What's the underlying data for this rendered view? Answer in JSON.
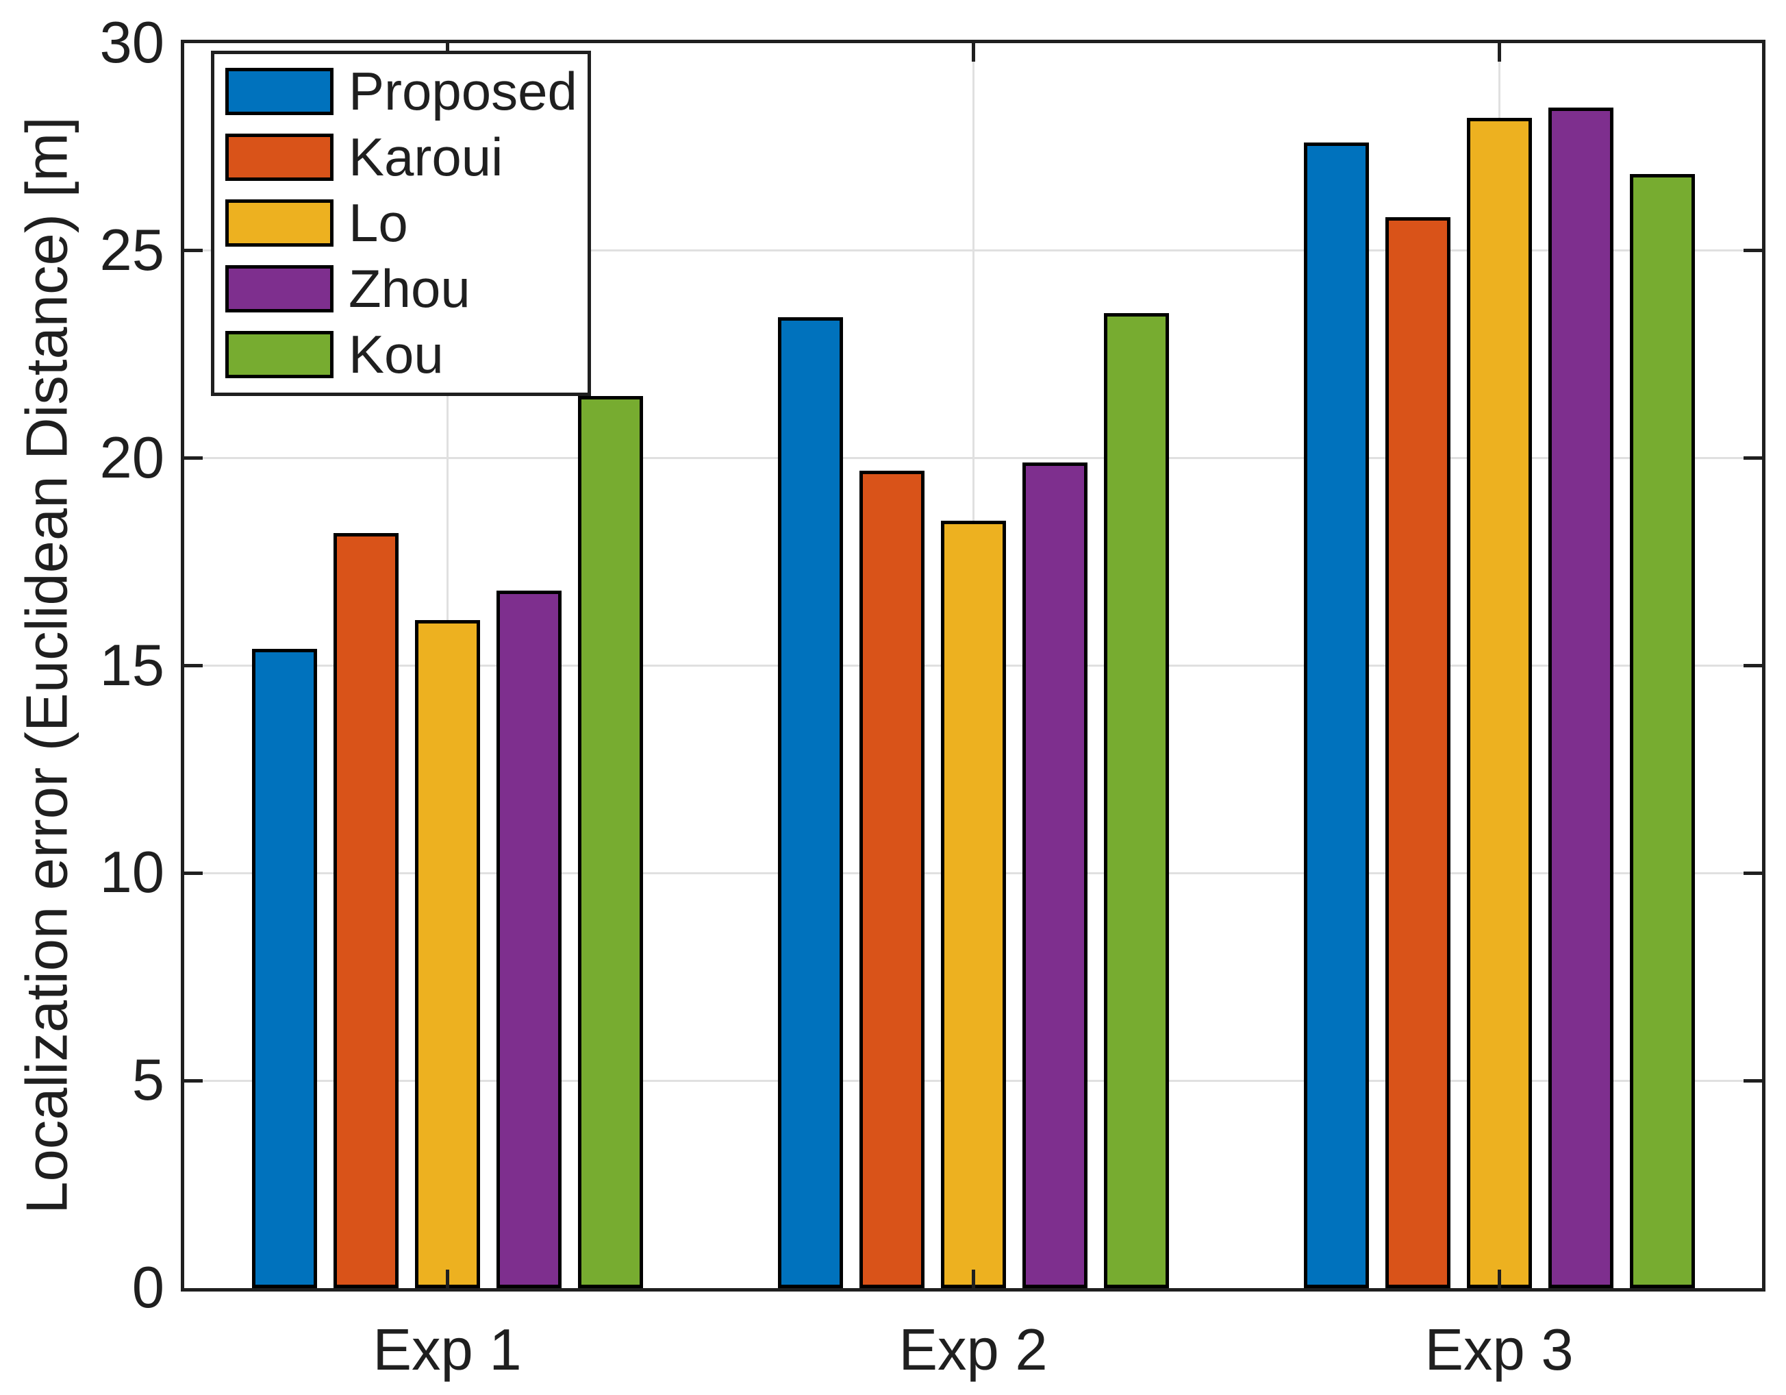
{
  "figure": {
    "background": "#ffffff",
    "axis_color": "#1f1f1f",
    "grid_color": "#e0e0e0",
    "bar_edge_color": "#000000",
    "text_color": "#1f1f1f"
  },
  "chart_data": {
    "type": "bar",
    "title": "",
    "categories": [
      "Exp 1",
      "Exp 2",
      "Exp 3"
    ],
    "series": [
      {
        "name": "Proposed",
        "color": "#0072BD",
        "values": [
          15.4,
          23.4,
          27.6
        ]
      },
      {
        "name": "Karoui",
        "color": "#D95319",
        "values": [
          18.2,
          19.7,
          25.8
        ]
      },
      {
        "name": "Lo",
        "color": "#EDB120",
        "values": [
          16.1,
          18.5,
          28.2
        ]
      },
      {
        "name": "Zhou",
        "color": "#7E2F8E",
        "values": [
          16.8,
          19.9,
          28.45
        ]
      },
      {
        "name": "Kou",
        "color": "#77AC30",
        "values": [
          21.5,
          23.5,
          26.85
        ]
      }
    ],
    "xlabel": "",
    "ylabel": "Localization error (Euclidean Distance) [m]",
    "ylim": [
      0,
      30
    ],
    "yticks": [
      0,
      5,
      10,
      15,
      20,
      25,
      30
    ],
    "grid": true,
    "legend_position": "top-left-inside",
    "legend_entries": [
      "Proposed",
      "Karoui",
      "Lo",
      "Zhou",
      "Kou"
    ]
  }
}
